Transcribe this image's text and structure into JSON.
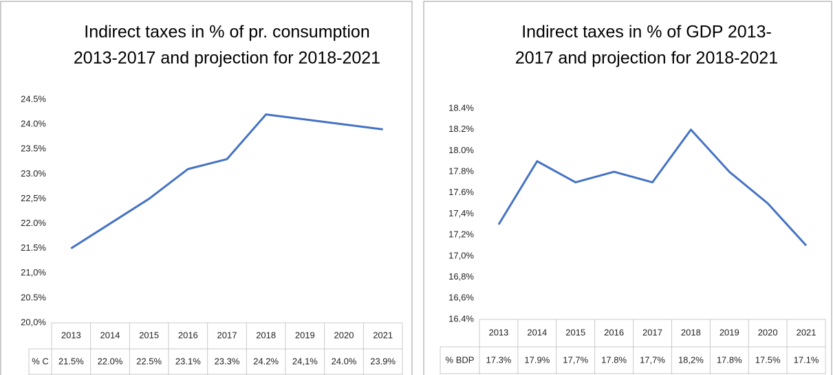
{
  "chart_data": [
    {
      "type": "line",
      "title": [
        "Indirect taxes in % of pr. consumption",
        "2013-2017 and projection for 2018-2021"
      ],
      "categories": [
        "2013",
        "2014",
        "2015",
        "2016",
        "2017",
        "2018",
        "2019",
        "2020",
        "2021"
      ],
      "series": [
        {
          "name": "% C",
          "color": "#4472c4",
          "values": [
            21.5,
            22.0,
            22.5,
            23.1,
            23.3,
            24.2,
            24.1,
            24.0,
            23.9
          ],
          "value_labels": [
            "21.5%",
            "22.0%",
            "22.5%",
            "23.1%",
            "23.3%",
            "24.2%",
            "24,1%",
            "24.0%",
            "23.9%"
          ]
        }
      ],
      "ylim": [
        20.0,
        24.5
      ],
      "yticks": [
        {
          "value": 20.0,
          "label": "20,0%"
        },
        {
          "value": 20.5,
          "label": "20.5%"
        },
        {
          "value": 21.0,
          "label": "21,0%"
        },
        {
          "value": 21.5,
          "label": "21.5%"
        },
        {
          "value": 22.0,
          "label": "22.0%"
        },
        {
          "value": 22.5,
          "label": "22,5%"
        },
        {
          "value": 23.0,
          "label": "23.0%"
        },
        {
          "value": 23.5,
          "label": "23.5%"
        },
        {
          "value": 24.0,
          "label": "24.0%"
        },
        {
          "value": 24.5,
          "label": "24.5%"
        }
      ],
      "grid": false,
      "data_table": true
    },
    {
      "type": "line",
      "title": [
        "Indirect taxes in % of GDP 2013-",
        "2017 and projection for 2018-2021"
      ],
      "categories": [
        "2013",
        "2014",
        "2015",
        "2016",
        "2017",
        "2018",
        "2019",
        "2020",
        "2021"
      ],
      "series": [
        {
          "name": "% BDP",
          "color": "#4472c4",
          "values": [
            17.3,
            17.9,
            17.7,
            17.8,
            17.7,
            18.2,
            17.8,
            17.5,
            17.1
          ],
          "value_labels": [
            "17.3%",
            "17.9%",
            "17,7%",
            "17.8%",
            "17,7%",
            "18,2%",
            "17.8%",
            "17.5%",
            "17.1%"
          ]
        }
      ],
      "ylim": [
        16.4,
        18.4
      ],
      "yticks": [
        {
          "value": 16.4,
          "label": "16.4%"
        },
        {
          "value": 16.6,
          "label": "16,6%"
        },
        {
          "value": 16.8,
          "label": "16,8%"
        },
        {
          "value": 17.0,
          "label": "17,0%"
        },
        {
          "value": 17.2,
          "label": "17,2%"
        },
        {
          "value": 17.4,
          "label": "17,4%"
        },
        {
          "value": 17.6,
          "label": "17.6%"
        },
        {
          "value": 17.8,
          "label": "17.8%"
        },
        {
          "value": 18.0,
          "label": "18.0%"
        },
        {
          "value": 18.2,
          "label": "18.2%"
        },
        {
          "value": 18.4,
          "label": "18.4%"
        }
      ],
      "grid": false,
      "data_table": true
    }
  ]
}
